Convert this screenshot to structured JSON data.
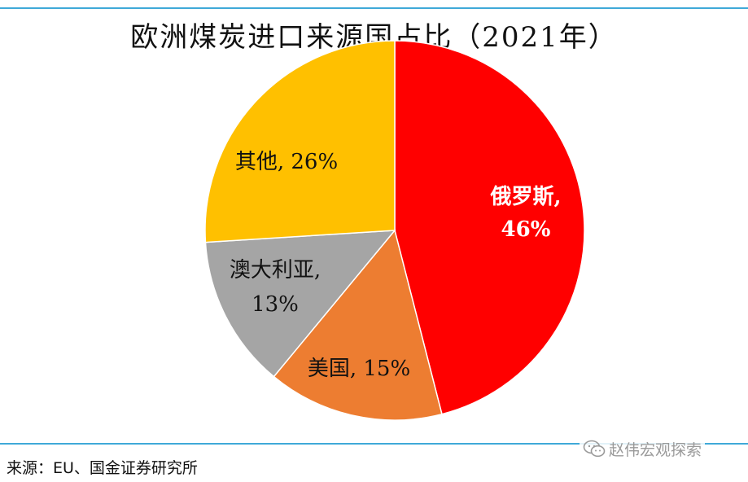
{
  "chart_data": {
    "type": "pie",
    "title": "欧洲煤炭进口来源国占比（2021年）",
    "slices": [
      {
        "label": "俄罗斯,",
        "value_label": "46%",
        "value": 46,
        "color": "#FF0000",
        "label_color": "#FFFFFF"
      },
      {
        "label": "美国,",
        "value_label": "15%",
        "value": 15,
        "color": "#ED7D31",
        "label_color": "#111111"
      },
      {
        "label": "澳大利亚,",
        "value_label": "13%",
        "value": 13,
        "color": "#A5A5A5",
        "label_color": "#111111"
      },
      {
        "label": "其他,",
        "value_label": "26%",
        "value": 26,
        "color": "#FFC000",
        "label_color": "#111111"
      }
    ],
    "start_angle_deg": 0,
    "direction": "clockwise"
  },
  "source": "来源：EU、国金证券研究所",
  "watermark": "赵伟宏观探索",
  "colors": {
    "rule": "#3FA9D8"
  }
}
